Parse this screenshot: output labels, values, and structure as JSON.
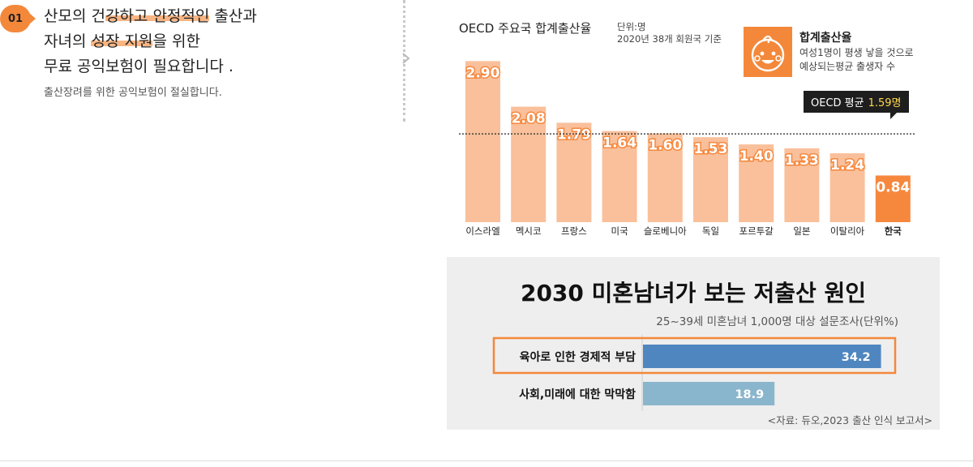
{
  "badge": "01",
  "headline": {
    "line1_a": "산모의 건",
    "line1_hl": "강하고 안정적인",
    "line1_b": " 출산과",
    "line2_a": "자녀의 ",
    "line2_hl": "성장 지원",
    "line2_b": "을 위한",
    "line3": "무료 공익보험이 필요합니다 ."
  },
  "subtext": "출산장려를 위한 공익보험이 절실합니다.",
  "chart1": {
    "title": "OECD 주요국 합계출산율",
    "unit_line1": "단위:명",
    "unit_line2": "2020년 38개 회원국 기준",
    "legend_title": "합계출산율",
    "legend_desc_line1": "여성1명이 평생 낳을 것으로",
    "legend_desc_line2": "예상되는평균 출생자 수",
    "avg_label": "OECD 평균",
    "avg_value": "1.59명"
  },
  "chart2": {
    "title": "2030 미혼남녀가 보는 저출산 원인",
    "subtitle": "25~39세 미혼남녀 1,000명 대상 설문조사(단위%)",
    "source": "<자료: 듀오,2023 출산 인식 보고서>"
  },
  "chart_data": [
    {
      "type": "bar",
      "title": "OECD 주요국 합계출산율",
      "categories": [
        "이스라엘",
        "멕시코",
        "프랑스",
        "미국",
        "슬로베니아",
        "독일",
        "포르투갈",
        "일본",
        "이탈리아",
        "한국"
      ],
      "values": [
        2.9,
        2.08,
        1.79,
        1.64,
        1.6,
        1.53,
        1.4,
        1.33,
        1.24,
        0.84
      ],
      "value_labels": [
        "2.90",
        "2.08",
        "1.79",
        "1.64",
        "1.60",
        "1.53",
        "1.40",
        "1.33",
        "1.24",
        "0.84"
      ],
      "reference_line": 1.59,
      "ylim": [
        0,
        3.3
      ],
      "grid": false,
      "colors": {
        "default": "#f9c09b",
        "highlight": "#f6883e",
        "reference": "#222222"
      },
      "highlight_category": "한국"
    },
    {
      "type": "bar",
      "orientation": "horizontal",
      "title": "2030 미혼남녀가 보는 저출산 원인",
      "categories": [
        "육아로 인한 경제적 부담",
        "사회,미래에 대한 막막함"
      ],
      "values": [
        34.2,
        18.9
      ],
      "value_labels": [
        "34.2",
        "18.9"
      ],
      "xlim": [
        0,
        35.3
      ],
      "grid": false,
      "colors": {
        "primary": "#4f86bf",
        "secondary": "#8ab6cd",
        "highlight_box": "#f4883a"
      }
    }
  ]
}
